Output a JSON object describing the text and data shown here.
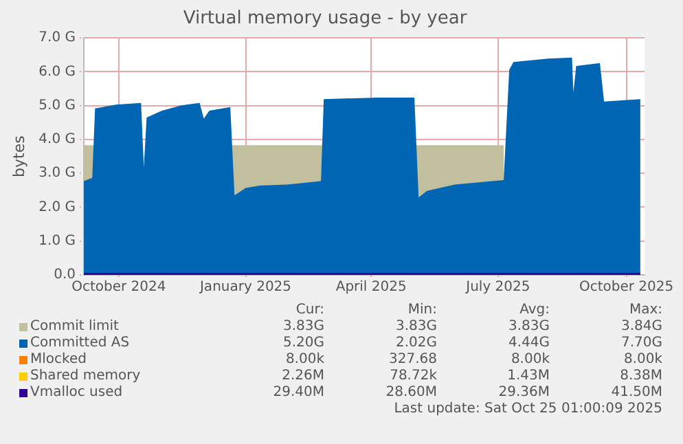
{
  "chart_data": {
    "type": "area",
    "title": "Virtual memory usage - by year",
    "ylabel": "bytes",
    "x": [
      "2024-09-21",
      "2024-09-27",
      "2024-09-29",
      "2024-10-14",
      "2024-11-01",
      "2024-11-03",
      "2024-11-05",
      "2024-11-16",
      "2024-11-30",
      "2024-12-13",
      "2024-12-16",
      "2024-12-20",
      "2025-01-04",
      "2025-01-07",
      "2025-01-15",
      "2025-01-25",
      "2025-02-14",
      "2025-03-10",
      "2025-03-12",
      "2025-04-19",
      "2025-05-16",
      "2025-05-19",
      "2025-05-25",
      "2025-06-14",
      "2025-07-19",
      "2025-07-23",
      "2025-07-26",
      "2025-08-20",
      "2025-09-06",
      "2025-09-07",
      "2025-09-09",
      "2025-09-26",
      "2025-09-29",
      "2025-10-25"
    ],
    "series": [
      {
        "name": "Commit limit",
        "color": "#c2bf9f",
        "values": [
          3.83,
          3.83,
          3.83,
          null,
          null,
          null,
          null,
          null,
          null,
          null,
          null,
          null,
          3.83,
          3.83,
          3.83,
          3.83,
          3.83,
          3.83,
          3.83,
          null,
          3.83,
          3.83,
          3.83,
          3.83,
          3.83,
          null,
          null,
          null,
          null,
          null,
          null,
          null,
          null,
          null
        ]
      },
      {
        "name": "Committed AS",
        "color": "#0066b3",
        "values": [
          2.77,
          2.87,
          4.92,
          5.03,
          5.08,
          3.18,
          4.65,
          4.85,
          5.01,
          5.08,
          4.62,
          4.85,
          4.96,
          2.35,
          2.57,
          2.64,
          2.67,
          2.77,
          5.19,
          5.24,
          5.24,
          2.29,
          2.48,
          2.67,
          2.8,
          6.06,
          6.29,
          6.39,
          6.42,
          5.39,
          6.17,
          6.26,
          5.12,
          5.19
        ]
      },
      {
        "name": "Mlocked",
        "color": "#ff8000",
        "type": "line",
        "values": [
          null,
          null,
          null,
          null,
          null,
          null,
          null,
          null,
          null,
          null,
          null,
          null,
          null,
          null,
          null,
          null,
          null,
          null,
          null,
          null,
          null,
          null,
          null,
          null,
          null,
          null,
          null,
          null,
          null,
          null,
          null,
          null,
          null,
          null
        ]
      },
      {
        "name": "Shared memory",
        "color": "#ffcc00",
        "type": "line",
        "values": [
          null,
          null,
          null,
          null,
          null,
          null,
          null,
          null,
          null,
          null,
          null,
          null,
          null,
          null,
          null,
          null,
          null,
          null,
          null,
          null,
          null,
          null,
          null,
          null,
          null,
          null,
          null,
          null,
          null,
          null,
          null,
          null,
          null,
          null
        ]
      },
      {
        "name": "Vmalloc used",
        "color": "#330099",
        "type": "line",
        "values": [
          0.03,
          0.03,
          0.03,
          0.03,
          0.03,
          0.03,
          0.03,
          0.03,
          0.03,
          0.03,
          0.03,
          0.03,
          0.03,
          0.03,
          0.03,
          0.03,
          0.03,
          0.03,
          0.03,
          0.03,
          0.03,
          0.03,
          0.03,
          0.03,
          0.03,
          0.03,
          0.03,
          0.03,
          0.03,
          0.03,
          0.03,
          0.03,
          0.03,
          0.03
        ]
      }
    ],
    "xlim": [
      "2024-09-21",
      "2025-10-28"
    ],
    "xticks": [
      {
        "value": "2024-10-16",
        "label": "October 2024"
      },
      {
        "value": "2025-01-15",
        "label": "January 2025"
      },
      {
        "value": "2025-04-15",
        "label": "April 2025"
      },
      {
        "value": "2025-07-15",
        "label": "July 2025"
      },
      {
        "value": "2025-10-15",
        "label": "October 2025"
      }
    ],
    "ylim": [
      0,
      7
    ],
    "yticks": [
      {
        "value": 0,
        "label": "0.0"
      },
      {
        "value": 1,
        "label": "1.0 G"
      },
      {
        "value": 2,
        "label": "2.0 G"
      },
      {
        "value": 3,
        "label": "3.0 G"
      },
      {
        "value": 4,
        "label": "4.0 G"
      },
      {
        "value": 5,
        "label": "5.0 G"
      },
      {
        "value": 6,
        "label": "6.0 G"
      },
      {
        "value": 7,
        "label": "7.0 G"
      }
    ],
    "grid": true,
    "legend": "bottom",
    "annotations": [
      "Cur:",
      "Min:",
      "Avg:",
      "Max:",
      "3.83G",
      "3.83G",
      "3.83G",
      "3.84G",
      "5.20G",
      "2.02G",
      "4.44G",
      "7.70G",
      "8.00k",
      "327.68",
      "8.00k",
      "8.00k",
      "2.26M",
      "78.72k",
      "1.43M",
      "8.38M",
      "29.40M",
      "28.60M",
      "29.36M",
      "41.50M",
      "Last update: Sat Oct 25 01:00:09 2025"
    ]
  }
}
